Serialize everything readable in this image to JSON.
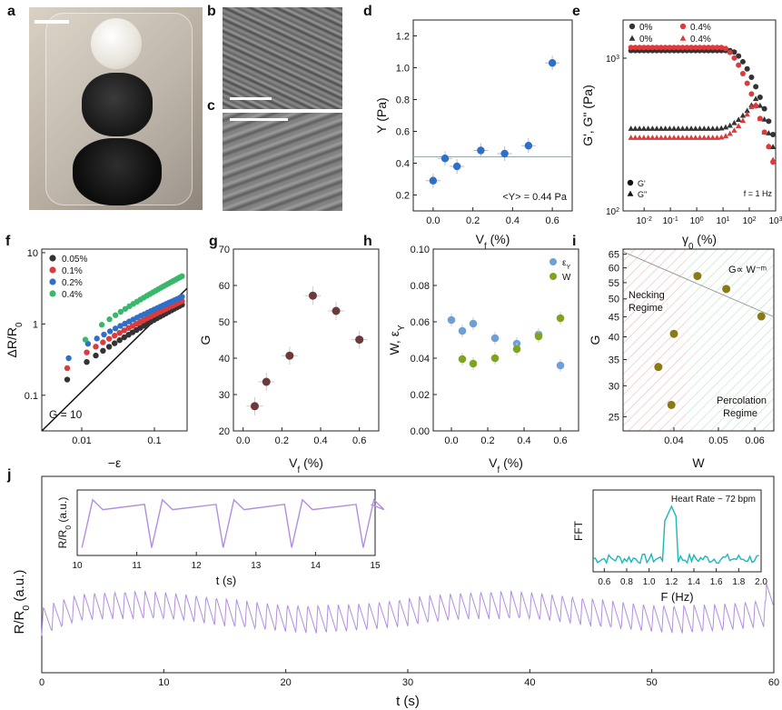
{
  "panel_labels": {
    "a": "a",
    "b": "b",
    "c": "c",
    "d": "d",
    "e": "e",
    "f": "f",
    "g": "g",
    "h": "h",
    "i": "i",
    "j": "j"
  },
  "colors": {
    "blue": "#2f6fc8",
    "black": "#333333",
    "red": "#dd3b3b",
    "green": "#39b86b",
    "maroon": "#6b3a3a",
    "lightblue": "#6e9fd6",
    "olive": "#7fa51f",
    "purple": "#b28ee0",
    "teal": "#1cb8b8",
    "gold": "#8a7a14"
  },
  "chart_data": [
    {
      "id": "d",
      "type": "scatter",
      "xlabel": "V",
      "xlabel_sub": "f",
      "xlabel_unit": " (%)",
      "ylabel": "Y (Pa)",
      "xlim": [
        -0.1,
        0.7
      ],
      "ylim": [
        0.1,
        1.3
      ],
      "xticks": [
        "0.0",
        "0.2",
        "0.4",
        "0.6"
      ],
      "xtick_values": [
        0,
        0.2,
        0.4,
        0.6
      ],
      "yticks": [
        "0.2",
        "0.4",
        "0.6",
        "0.8",
        "1.0",
        "1.2"
      ],
      "ytick_values": [
        0.2,
        0.4,
        0.6,
        0.8,
        1.0,
        1.2
      ],
      "x": [
        0,
        0.06,
        0.12,
        0.24,
        0.36,
        0.48,
        0.6
      ],
      "y": [
        0.29,
        0.43,
        0.38,
        0.48,
        0.46,
        0.51,
        1.03
      ],
      "hline": 0.44,
      "annotation": "<Y> = 0.44 Pa"
    },
    {
      "id": "e",
      "type": "scatter",
      "scale": "log-log",
      "xlabel": "γ",
      "xlabel_sub": "0",
      "xlabel_unit": " (%)",
      "ylabel": "G', G\" (Pa)",
      "xlim_log": [
        -2.8,
        3.0
      ],
      "ylim_log": [
        2.0,
        3.25
      ],
      "xticks": [
        "10",
        "10",
        "10",
        "10",
        "10",
        "10"
      ],
      "xtick_exps": [
        "-2",
        "-1",
        "0",
        "1",
        "2",
        "3"
      ],
      "xtick_values": [
        -2,
        -1,
        0,
        1,
        2,
        3
      ],
      "yticks": [
        "10",
        "10"
      ],
      "ytick_exps": [
        "2",
        "3"
      ],
      "ytick_values": [
        2,
        3
      ],
      "legend_top": [
        {
          "marker": "circle",
          "color": "#333333",
          "label": "0%"
        },
        {
          "marker": "circle",
          "color": "#dd3b3b",
          "label": "0.4%"
        },
        {
          "marker": "triangle",
          "color": "#333333",
          "label": "0%"
        },
        {
          "marker": "triangle",
          "color": "#dd3b3b",
          "label": "0.4%"
        }
      ],
      "legend_bottom": [
        {
          "marker": "circle",
          "label": "G'"
        },
        {
          "marker": "triangle",
          "label": "G\""
        }
      ],
      "annotation": "f = 1 Hz",
      "series": [
        {
          "marker": "circle",
          "color": "#333333",
          "logx_start": -2.5,
          "logx_end": 2.9,
          "n": 34,
          "plateau": 3.05,
          "knee": 1.3,
          "drop": 0.55
        },
        {
          "marker": "circle",
          "color": "#dd3b3b",
          "logx_start": -2.5,
          "logx_end": 2.9,
          "n": 34,
          "plateau": 3.07,
          "knee": 1.0,
          "drop": 0.75
        },
        {
          "marker": "triangle",
          "color": "#333333",
          "logx_start": -2.5,
          "logx_end": 2.9,
          "n": 34,
          "plateau": 2.54,
          "peak": 2.75,
          "peakx": 2.3
        },
        {
          "marker": "triangle",
          "color": "#dd3b3b",
          "logx_start": -2.5,
          "logx_end": 2.9,
          "n": 34,
          "plateau": 2.48,
          "peak": 2.72,
          "peakx": 2.2
        }
      ]
    },
    {
      "id": "f",
      "type": "scatter",
      "scale": "log-log",
      "xlabel": "−ε",
      "ylabel": "ΔR/R",
      "ylabel_sub": "0",
      "xlim_log": [
        -2.55,
        -0.55
      ],
      "ylim_log": [
        -1.5,
        1.05
      ],
      "xticks": [
        "0.01",
        "0.1"
      ],
      "xtick_values": [
        -2,
        -1
      ],
      "yticks": [
        "0.1",
        "1",
        "10"
      ],
      "ytick_values": [
        -1,
        0,
        1
      ],
      "legend": [
        {
          "color": "#333333",
          "label": "0.05%"
        },
        {
          "color": "#dd3b3b",
          "label": "0.1%"
        },
        {
          "color": "#2f6fc8",
          "label": "0.2%"
        },
        {
          "color": "#39b86b",
          "label": "0.4%"
        }
      ],
      "series": [
        {
          "color": "#333333",
          "start": [
            -2.2,
            -0.78
          ],
          "end": [
            -0.62,
            0.27
          ]
        },
        {
          "color": "#dd3b3b",
          "start": [
            -2.2,
            -0.62
          ],
          "end": [
            -0.62,
            0.32
          ]
        },
        {
          "color": "#2f6fc8",
          "start": [
            -2.18,
            -0.48
          ],
          "end": [
            -0.62,
            0.38
          ]
        },
        {
          "color": "#39b86b",
          "start": [
            -1.95,
            -0.22
          ],
          "end": [
            -0.62,
            0.67
          ]
        }
      ],
      "line": {
        "label": "G = 10",
        "start": [
          -2.55,
          -1.5
        ],
        "end": [
          -0.55,
          0.5
        ]
      }
    },
    {
      "id": "g",
      "type": "scatter",
      "xlabel": "V",
      "xlabel_sub": "f",
      "xlabel_unit": " (%)",
      "ylabel": "G",
      "xlim": [
        -0.05,
        0.7
      ],
      "ylim": [
        20,
        70
      ],
      "xticks": [
        "0.0",
        "0.2",
        "0.4",
        "0.6"
      ],
      "xtick_values": [
        0,
        0.2,
        0.4,
        0.6
      ],
      "yticks": [
        "20",
        "30",
        "40",
        "50",
        "60",
        "70"
      ],
      "ytick_values": [
        20,
        30,
        40,
        50,
        60,
        70
      ],
      "x": [
        0.06,
        0.12,
        0.24,
        0.36,
        0.48,
        0.6
      ],
      "y": [
        26.8,
        33.5,
        40.7,
        57.2,
        53,
        45.1
      ]
    },
    {
      "id": "h",
      "type": "scatter",
      "xlabel": "V",
      "xlabel_sub": "f",
      "xlabel_unit": " (%)",
      "ylabel": "W, ε",
      "ylabel_sub": "Y",
      "xlim": [
        -0.1,
        0.7
      ],
      "ylim": [
        0,
        0.1
      ],
      "xticks": [
        "0.0",
        "0.2",
        "0.4",
        "0.6"
      ],
      "xtick_values": [
        0,
        0.2,
        0.4,
        0.6
      ],
      "yticks": [
        "0.00",
        "0.02",
        "0.04",
        "0.06",
        "0.08",
        "0.10"
      ],
      "ytick_values": [
        0,
        0.02,
        0.04,
        0.06,
        0.08,
        0.1
      ],
      "legend": [
        {
          "color": "#6e9fd6",
          "label": "ε",
          "sub": "Y"
        },
        {
          "color": "#7fa51f",
          "label": "W",
          "sub": ""
        }
      ],
      "series": [
        {
          "name": "ε_Y",
          "color": "#6e9fd6",
          "x": [
            0,
            0.06,
            0.12,
            0.24,
            0.36,
            0.48,
            0.6
          ],
          "y": [
            0.061,
            0.055,
            0.059,
            0.051,
            0.048,
            0.053,
            0.036
          ]
        },
        {
          "name": "W",
          "color": "#7fa51f",
          "x": [
            0.06,
            0.12,
            0.24,
            0.36,
            0.48,
            0.6
          ],
          "y": [
            0.0395,
            0.037,
            0.04,
            0.045,
            0.052,
            0.062
          ]
        }
      ]
    },
    {
      "id": "i",
      "type": "scatter",
      "scale": "log-log",
      "xlabel": "W",
      "ylabel": "G",
      "xlim": [
        0.031,
        0.066
      ],
      "ylim": [
        23,
        67
      ],
      "xticks": [
        "0.04",
        "0.05",
        "0.06"
      ],
      "xtick_values": [
        0.04,
        0.05,
        0.06
      ],
      "yticks": [
        "25",
        "30",
        "35",
        "40",
        "45",
        "50",
        "55",
        "60",
        "65"
      ],
      "ytick_values": [
        25,
        30,
        35,
        40,
        45,
        50,
        55,
        60,
        65
      ],
      "x": [
        0.0395,
        0.037,
        0.04,
        0.045,
        0.052,
        0.062
      ],
      "y": [
        26.8,
        33.5,
        40.7,
        57.2,
        53,
        45.1
      ],
      "regions": [
        {
          "label": "Necking",
          "label2": "Regime"
        },
        {
          "label": "Percolation",
          "label2": "Regime"
        }
      ],
      "annotation": "G∝ W⁻ᵐ",
      "fit_start": [
        0.031,
        66
      ],
      "fit_end": [
        0.066,
        45
      ]
    },
    {
      "id": "j",
      "type": "line",
      "xlabel": "t (s)",
      "ylabel": "R/R",
      "ylabel_sub": "0",
      "ylabel_unit": " (a.u.)",
      "xlim": [
        0,
        60
      ],
      "xticks": [
        "0",
        "10",
        "20",
        "30",
        "40",
        "50",
        "60"
      ],
      "xtick_values": [
        0,
        10,
        20,
        30,
        40,
        50,
        60
      ],
      "beats": 72,
      "inset_left": {
        "xlabel": "t (s)",
        "ylabel": "R/R",
        "ylabel_sub": "0",
        "ylabel_unit": " (a.u.)",
        "xlim": [
          10,
          15
        ],
        "xticks": [
          "10",
          "11",
          "12",
          "13",
          "14",
          "15"
        ],
        "xtick_values": [
          10,
          11,
          12,
          13,
          14,
          15
        ],
        "beat_starts": [
          10.08,
          11.25,
          12.45,
          13.6,
          14.8
        ]
      },
      "inset_right": {
        "xlabel": "F (Hz)",
        "ylabel": "FFT",
        "xlim": [
          0.5,
          2.0
        ],
        "xticks": [
          "0.6",
          "0.8",
          "1.0",
          "1.2",
          "1.4",
          "1.6",
          "1.8",
          "2.0"
        ],
        "xtick_values": [
          0.6,
          0.8,
          1.0,
          1.2,
          1.4,
          1.6,
          1.8,
          2.0
        ],
        "annotation": "Heart Rate ~ 72 bpm",
        "peak_hz": 1.2
      }
    }
  ]
}
